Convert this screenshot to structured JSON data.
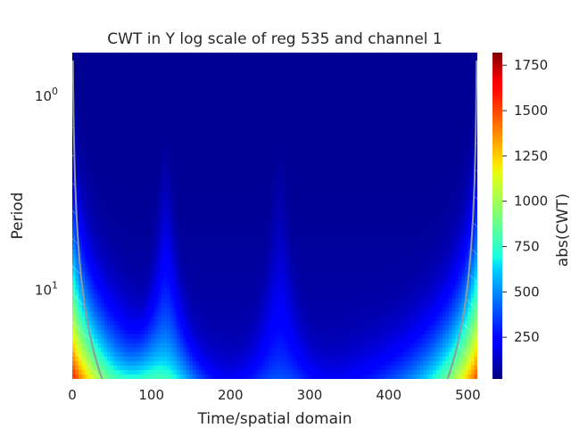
{
  "chart_data": {
    "type": "heatmap",
    "title": "CWT in Y log scale of reg 535 and channel 1",
    "xlabel": "Time/spatial domain",
    "ylabel": "Period",
    "x_range": [
      0,
      512
    ],
    "x_ticks": [
      0,
      100,
      200,
      300,
      400,
      500
    ],
    "y_scale": "log",
    "y_inverted": true,
    "y_range": [
      0.6,
      29
    ],
    "y_ticks": [
      {
        "value": 1,
        "base": "10",
        "exp": "0"
      },
      {
        "value": 10,
        "base": "10",
        "exp": "1"
      }
    ],
    "colormap": "jet",
    "colorbar": {
      "label": "abs(CWT)",
      "range": [
        20,
        1820
      ],
      "ticks": [
        250,
        500,
        750,
        1000,
        1250,
        1500,
        1750
      ]
    },
    "features": [
      {
        "kind": "plume",
        "x": 118,
        "strength": 600
      },
      {
        "kind": "plume",
        "x": 262,
        "strength": 330
      },
      {
        "kind": "edge",
        "x": 0,
        "strength": 1500
      },
      {
        "kind": "edge",
        "x": 512,
        "strength": 1400
      }
    ],
    "cone_of_influence": true
  },
  "colors": {
    "cone_line": "#8a9aa6",
    "hatch": "#ffffff"
  }
}
